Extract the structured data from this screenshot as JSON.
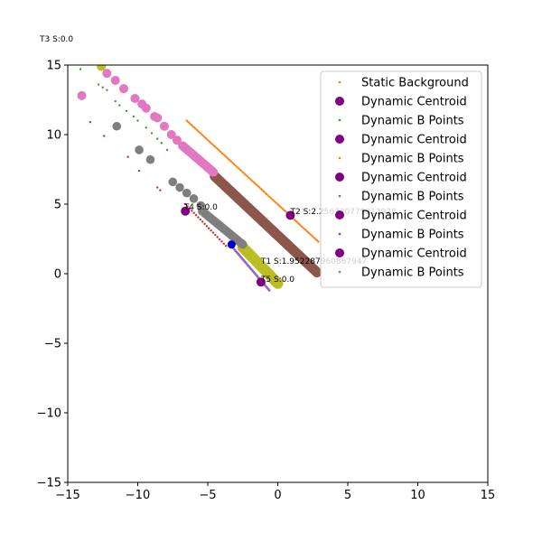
{
  "chart_data": {
    "type": "scatter",
    "title": "",
    "xlabel": "",
    "ylabel": "",
    "xlim": [
      -15,
      15
    ],
    "ylim": [
      -15,
      15
    ],
    "xticks": [
      -15,
      -10,
      -5,
      0,
      5,
      10,
      15
    ],
    "yticks": [
      -15,
      -10,
      -5,
      0,
      5,
      10,
      15
    ],
    "grid": false,
    "legend_position": "top-right",
    "corner_label": "T3 S:0.0",
    "legend": [
      {
        "label": "Static Background",
        "color": "#ff7f0e",
        "marker": "dot"
      },
      {
        "label": "Dynamic Centroid",
        "color": "#800080",
        "marker": "circle"
      },
      {
        "label": "Dynamic B Points",
        "color": "#2ca02c",
        "marker": "dot"
      },
      {
        "label": "Dynamic Centroid",
        "color": "#800080",
        "marker": "circle"
      },
      {
        "label": "Dynamic B Points",
        "color": "#ff7f0e",
        "marker": "dot"
      },
      {
        "label": "Dynamic Centroid",
        "color": "#800080",
        "marker": "circle"
      },
      {
        "label": "Dynamic B Points",
        "color": "#2ca02c",
        "marker": "dot"
      },
      {
        "label": "Dynamic Centroid",
        "color": "#800080",
        "marker": "circle"
      },
      {
        "label": "Dynamic B Points",
        "color": "#d62728",
        "marker": "dot"
      },
      {
        "label": "Dynamic Centroid",
        "color": "#800080",
        "marker": "circle"
      },
      {
        "label": "Dynamic B Points",
        "color": "#9467bd",
        "marker": "dot"
      }
    ],
    "annotations": [
      {
        "text": "T2 S:2.256720779813928",
        "x": 0.9,
        "y": 4.3
      },
      {
        "text": "T1 S:1.952287960867947",
        "x": -1.2,
        "y": 0.7
      },
      {
        "text": "T4 S:0.0",
        "x": -6.7,
        "y": 4.6
      },
      {
        "text": "T5 S:0.0",
        "x": -1.2,
        "y": -0.6
      }
    ],
    "series": [
      {
        "style": "line_dots",
        "color": "#ff7f0e",
        "size": 1.2,
        "from": [
          -6.5,
          11.0
        ],
        "to": [
          2.9,
          2.3
        ],
        "count": 90
      },
      {
        "style": "dense_circles",
        "color": "#8c564b",
        "size": 5.5,
        "from": [
          -4.5,
          7.0
        ],
        "to": [
          2.8,
          0.1
        ],
        "count": 120
      },
      {
        "style": "dense_circles",
        "color": "#bcbd22",
        "size": 6.0,
        "from": [
          -2.5,
          1.9
        ],
        "to": [
          0.0,
          -0.7
        ],
        "count": 50
      },
      {
        "style": "line_dots",
        "color": "#9467bd",
        "size": 1.3,
        "from": [
          -3.4,
          2.1
        ],
        "to": [
          -0.6,
          -1.2
        ],
        "count": 55
      },
      {
        "style": "line_dots",
        "color": "#d62728",
        "size": 1.2,
        "from": [
          -6.6,
          5.0
        ],
        "to": [
          -3.7,
          2.0
        ],
        "count": 20
      },
      {
        "style": "circles",
        "color": "#7f7f7f",
        "size": 4.8,
        "points": [
          [
            -11.5,
            10.6
          ],
          [
            -9.9,
            8.9
          ],
          [
            -9.1,
            8.2
          ],
          [
            -7.5,
            6.6
          ],
          [
            -7.0,
            6.2
          ],
          [
            -6.5,
            5.8
          ],
          [
            -6.0,
            5.4
          ],
          [
            -5.5,
            4.9
          ]
        ]
      },
      {
        "style": "dense_circles",
        "color": "#7f7f7f",
        "size": 4.8,
        "from": [
          -5.4,
          4.5
        ],
        "to": [
          -2.5,
          2.1
        ],
        "count": 35
      },
      {
        "style": "circles",
        "color": "#e377c2",
        "size": 5.0,
        "points": [
          [
            -14.0,
            12.8
          ],
          [
            -12.6,
            15.0
          ],
          [
            -12.2,
            14.4
          ],
          [
            -11.6,
            13.9
          ],
          [
            -11.0,
            13.3
          ],
          [
            -10.2,
            12.6
          ],
          [
            -9.7,
            12.2
          ],
          [
            -9.4,
            11.9
          ],
          [
            -8.8,
            11.3
          ],
          [
            -8.6,
            11.2
          ],
          [
            -8.1,
            10.6
          ],
          [
            -7.6,
            10.0
          ],
          [
            -7.2,
            9.6
          ]
        ]
      },
      {
        "style": "dense_circles",
        "color": "#e377c2",
        "size": 5.0,
        "from": [
          -6.8,
          9.2
        ],
        "to": [
          -4.6,
          7.3
        ],
        "count": 30
      },
      {
        "style": "points",
        "color": "#2ca02c",
        "size": 1.2,
        "points": [
          [
            -14.1,
            14.7
          ],
          [
            -12.8,
            13.6
          ],
          [
            -12.5,
            13.4
          ],
          [
            -12.2,
            13.2
          ],
          [
            -11.6,
            12.4
          ],
          [
            -11.3,
            12.1
          ],
          [
            -10.8,
            11.7
          ],
          [
            -10.3,
            11.3
          ],
          [
            -10.0,
            11.0
          ],
          [
            -9.4,
            10.5
          ],
          [
            -9.0,
            10.1
          ],
          [
            -8.6,
            9.7
          ],
          [
            -8.3,
            9.4
          ],
          [
            -7.9,
            8.9
          ]
        ]
      },
      {
        "style": "points",
        "color": "#d62728",
        "size": 1.2,
        "points": [
          [
            -13.4,
            10.9
          ],
          [
            -12.4,
            9.9
          ],
          [
            -10.7,
            8.4
          ],
          [
            -9.9,
            7.4
          ],
          [
            -8.6,
            6.2
          ],
          [
            -8.4,
            6.0
          ]
        ]
      },
      {
        "style": "circles",
        "color": "#0000cd",
        "size": 4.5,
        "points": [
          [
            -3.3,
            2.1
          ]
        ]
      },
      {
        "style": "circles",
        "color": "#800080",
        "size": 5.0,
        "points": [
          [
            0.9,
            4.2
          ],
          [
            -6.6,
            4.5
          ],
          [
            -1.2,
            -0.6
          ]
        ]
      },
      {
        "style": "circles",
        "color": "#bcbd22",
        "size": 5.0,
        "points": [
          [
            -12.6,
            14.9
          ]
        ]
      }
    ]
  }
}
